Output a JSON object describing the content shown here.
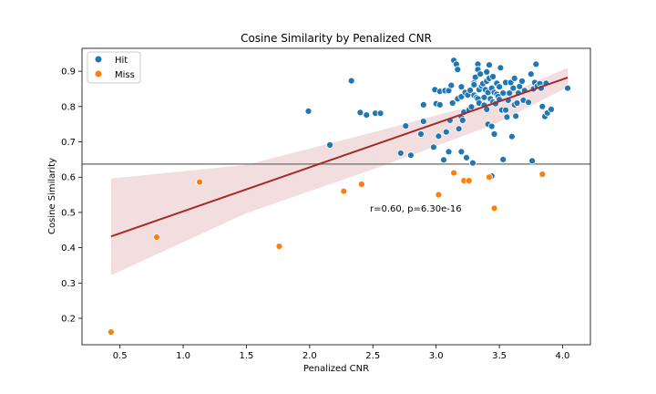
{
  "chart_data": {
    "type": "scatter",
    "title": "Cosine Similarity by Penalized CNR",
    "xlabel": "Penalized CNR",
    "ylabel": "Cosine Similarity",
    "xlim": [
      0.2,
      4.22
    ],
    "ylim": [
      0.125,
      0.965
    ],
    "xticks": [
      0.5,
      1.0,
      1.5,
      2.0,
      2.5,
      3.0,
      3.5,
      4.0
    ],
    "xtick_labels": [
      "0.5",
      "1.0",
      "1.5",
      "2.0",
      "2.5",
      "3.0",
      "3.5",
      "4.0"
    ],
    "yticks": [
      0.2,
      0.3,
      0.4,
      0.5,
      0.6,
      0.7,
      0.8,
      0.9
    ],
    "ytick_labels": [
      "0.2",
      "0.3",
      "0.4",
      "0.5",
      "0.6",
      "0.7",
      "0.8",
      "0.9"
    ],
    "hline": 0.637,
    "regression": {
      "x": [
        0.43,
        4.04
      ],
      "y": [
        0.432,
        0.882
      ],
      "ci_lower": [
        [
          0.43,
          0.322
        ],
        [
          1.5,
          0.498
        ],
        [
          2.5,
          0.622
        ],
        [
          3.45,
          0.748
        ],
        [
          4.04,
          0.855
        ]
      ],
      "ci_upper": [
        [
          0.43,
          0.596
        ],
        [
          1.5,
          0.635
        ],
        [
          2.5,
          0.727
        ],
        [
          3.45,
          0.818
        ],
        [
          4.04,
          0.91
        ]
      ]
    },
    "annotation": "r=0.60, p=6.30e-16",
    "legend": {
      "position": "top-left",
      "entries": [
        "Hit",
        "Miss"
      ]
    },
    "colors": {
      "Hit": "#1f77b4",
      "Miss": "#ff7f0e",
      "line": "#a52a2a",
      "ci": "#e8c2c2",
      "hline": "#808080"
    },
    "series": [
      {
        "name": "Hit",
        "points": [
          [
            1.99,
            0.787
          ],
          [
            2.16,
            0.691
          ],
          [
            2.33,
            0.873
          ],
          [
            2.4,
            0.783
          ],
          [
            2.45,
            0.776
          ],
          [
            2.52,
            0.781
          ],
          [
            2.56,
            0.781
          ],
          [
            2.72,
            0.668
          ],
          [
            2.76,
            0.745
          ],
          [
            2.8,
            0.662
          ],
          [
            2.88,
            0.722
          ],
          [
            2.9,
            0.758
          ],
          [
            2.9,
            0.805
          ],
          [
            2.98,
            0.685
          ],
          [
            2.99,
            0.848
          ],
          [
            3.0,
            0.808
          ],
          [
            3.02,
            0.716
          ],
          [
            3.03,
            0.843
          ],
          [
            3.03,
            0.805
          ],
          [
            3.06,
            0.649
          ],
          [
            3.07,
            0.845
          ],
          [
            3.08,
            0.728
          ],
          [
            3.1,
            0.845
          ],
          [
            3.1,
            0.672
          ],
          [
            3.11,
            0.761
          ],
          [
            3.12,
            0.86
          ],
          [
            3.13,
            0.81
          ],
          [
            3.14,
            0.931
          ],
          [
            3.16,
            0.92
          ],
          [
            3.17,
            0.905
          ],
          [
            3.17,
            0.822
          ],
          [
            3.18,
            0.737
          ],
          [
            3.2,
            0.856
          ],
          [
            3.2,
            0.828
          ],
          [
            3.2,
            0.77
          ],
          [
            3.2,
            0.672
          ],
          [
            3.21,
            0.761
          ],
          [
            3.22,
            0.784
          ],
          [
            3.23,
            0.84
          ],
          [
            3.24,
            0.655
          ],
          [
            3.25,
            0.833
          ],
          [
            3.26,
            0.79
          ],
          [
            3.27,
            0.846
          ],
          [
            3.28,
            0.799
          ],
          [
            3.29,
            0.64
          ],
          [
            3.3,
            0.867
          ],
          [
            3.3,
            0.832
          ],
          [
            3.3,
            0.862
          ],
          [
            3.31,
            0.883
          ],
          [
            3.32,
            0.826
          ],
          [
            3.33,
            0.92
          ],
          [
            3.33,
            0.905
          ],
          [
            3.33,
            0.822
          ],
          [
            3.34,
            0.848
          ],
          [
            3.34,
            0.81
          ],
          [
            3.35,
            0.892
          ],
          [
            3.36,
            0.858
          ],
          [
            3.37,
            0.865
          ],
          [
            3.38,
            0.804
          ],
          [
            3.38,
            0.826
          ],
          [
            3.39,
            0.848
          ],
          [
            3.4,
            0.898
          ],
          [
            3.4,
            0.872
          ],
          [
            3.4,
            0.792
          ],
          [
            3.41,
            0.84
          ],
          [
            3.41,
            0.75
          ],
          [
            3.42,
            0.918
          ],
          [
            3.42,
            0.88
          ],
          [
            3.43,
            0.822
          ],
          [
            3.44,
            0.852
          ],
          [
            3.44,
            0.744
          ],
          [
            3.44,
            0.603
          ],
          [
            3.45,
            0.885
          ],
          [
            3.45,
            0.813
          ],
          [
            3.46,
            0.722
          ],
          [
            3.46,
            0.84
          ],
          [
            3.47,
            0.808
          ],
          [
            3.48,
            0.866
          ],
          [
            3.48,
            0.835
          ],
          [
            3.49,
            0.828
          ],
          [
            3.5,
            0.856
          ],
          [
            3.5,
            0.82
          ],
          [
            3.51,
            0.91
          ],
          [
            3.52,
            0.79
          ],
          [
            3.53,
            0.838
          ],
          [
            3.53,
            0.65
          ],
          [
            3.55,
            0.868
          ],
          [
            3.55,
            0.79
          ],
          [
            3.56,
            0.77
          ],
          [
            3.57,
            0.818
          ],
          [
            3.58,
            0.838
          ],
          [
            3.59,
            0.868
          ],
          [
            3.6,
            0.715
          ],
          [
            3.61,
            0.852
          ],
          [
            3.62,
            0.805
          ],
          [
            3.62,
            0.88
          ],
          [
            3.63,
            0.773
          ],
          [
            3.64,
            0.81
          ],
          [
            3.65,
            0.838
          ],
          [
            3.66,
            0.857
          ],
          [
            3.68,
            0.872
          ],
          [
            3.69,
            0.818
          ],
          [
            3.7,
            0.845
          ],
          [
            3.73,
            0.812
          ],
          [
            3.75,
            0.892
          ],
          [
            3.76,
            0.646
          ],
          [
            3.77,
            0.85
          ],
          [
            3.78,
            0.868
          ],
          [
            3.79,
            0.92
          ],
          [
            3.8,
            0.858
          ],
          [
            3.82,
            0.865
          ],
          [
            3.83,
            0.852
          ],
          [
            3.84,
            0.8
          ],
          [
            3.86,
            0.772
          ],
          [
            3.87,
            0.866
          ],
          [
            3.88,
            0.782
          ],
          [
            3.91,
            0.792
          ],
          [
            4.04,
            0.852
          ]
        ]
      },
      {
        "name": "Miss",
        "points": [
          [
            0.43,
            0.161
          ],
          [
            0.79,
            0.43
          ],
          [
            1.13,
            0.586
          ],
          [
            1.76,
            0.404
          ],
          [
            2.27,
            0.56
          ],
          [
            2.41,
            0.58
          ],
          [
            3.02,
            0.55
          ],
          [
            3.14,
            0.612
          ],
          [
            3.22,
            0.59
          ],
          [
            3.26,
            0.59
          ],
          [
            3.42,
            0.6
          ],
          [
            3.46,
            0.512
          ],
          [
            3.84,
            0.608
          ]
        ]
      }
    ]
  }
}
